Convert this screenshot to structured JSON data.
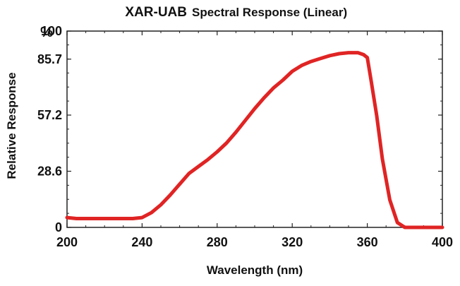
{
  "chart_data": {
    "type": "line",
    "title": "XAR-UAB",
    "subtitle": "Spectral Response (Linear)",
    "xlabel": "Wavelength (nm)",
    "ylabel": "Relative Response",
    "y_unit": "%",
    "xlim": [
      200,
      400
    ],
    "ylim": [
      0,
      100
    ],
    "x_ticks": [
      200,
      240,
      280,
      320,
      360,
      400
    ],
    "y_ticks": [
      0,
      28.6,
      57.2,
      85.7,
      100
    ],
    "x_tick_labels": [
      "200",
      "240",
      "280",
      "320",
      "360",
      "400"
    ],
    "y_tick_labels": [
      "0",
      "28.6",
      "57.2",
      "85.7",
      "100"
    ],
    "grid": false,
    "line_color": "#e02424",
    "series": [
      {
        "x": [
          200,
          205,
          220,
          235,
          240,
          245,
          250,
          255,
          260,
          265,
          270,
          275,
          280,
          285,
          290,
          295,
          300,
          305,
          310,
          315,
          320,
          325,
          330,
          335,
          340,
          345,
          350,
          355,
          358,
          360,
          362,
          365,
          368,
          372,
          376,
          380,
          385,
          390,
          400
        ],
        "y": [
          5,
          4.5,
          4.5,
          4.5,
          5,
          7.5,
          11.5,
          16.5,
          22,
          27.5,
          31,
          34.5,
          38.5,
          43,
          48.5,
          54.5,
          60.5,
          66,
          71,
          75,
          79.5,
          82.5,
          84.5,
          86,
          87.5,
          88.5,
          89,
          89,
          88,
          86.5,
          75,
          57,
          35,
          14,
          2.5,
          0,
          0,
          0,
          0
        ]
      }
    ]
  }
}
